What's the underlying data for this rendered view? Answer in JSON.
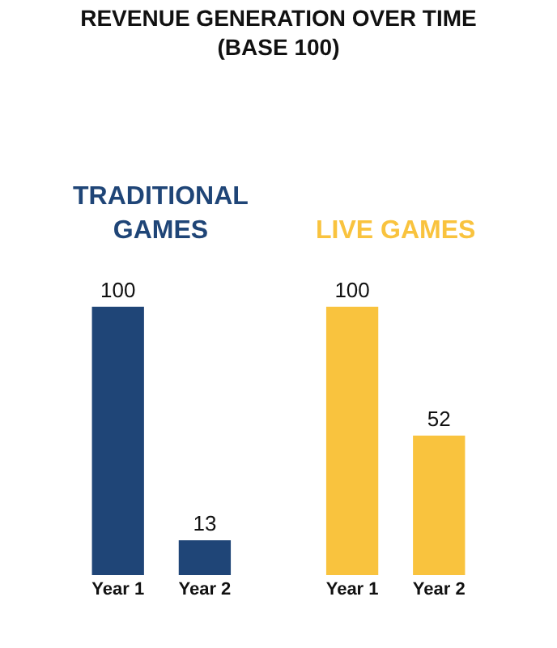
{
  "chart_data": {
    "type": "bar",
    "title": "REVENUE GENERATION OVER TIME\n(BASE 100)",
    "categories": [
      "Year 1",
      "Year 2",
      "Year 1",
      "Year 2"
    ],
    "values": [
      100,
      13,
      100,
      52
    ],
    "colors": [
      "#1f4577",
      "#1f4577",
      "#f9c33e",
      "#f9c33e"
    ],
    "data_labels": true,
    "annotations": [
      "TRADITIONAL\nGAMES",
      "LIVE GAMES"
    ],
    "legend": false
  }
}
